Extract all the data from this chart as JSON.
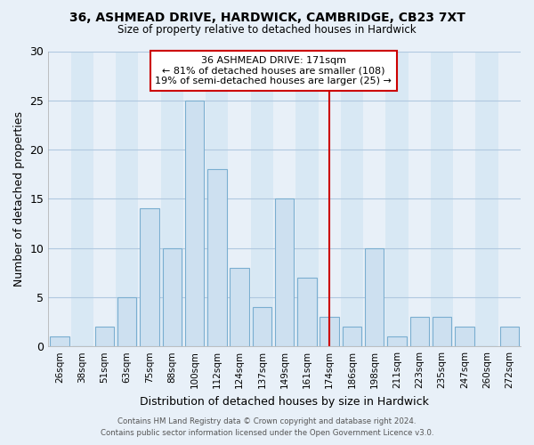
{
  "title_line1": "36, ASHMEAD DRIVE, HARDWICK, CAMBRIDGE, CB23 7XT",
  "title_line2": "Size of property relative to detached houses in Hardwick",
  "xlabel": "Distribution of detached houses by size in Hardwick",
  "ylabel": "Number of detached properties",
  "bar_labels": [
    "26sqm",
    "38sqm",
    "51sqm",
    "63sqm",
    "75sqm",
    "88sqm",
    "100sqm",
    "112sqm",
    "124sqm",
    "137sqm",
    "149sqm",
    "161sqm",
    "174sqm",
    "186sqm",
    "198sqm",
    "211sqm",
    "223sqm",
    "235sqm",
    "247sqm",
    "260sqm",
    "272sqm"
  ],
  "bar_values": [
    1,
    0,
    2,
    5,
    14,
    10,
    25,
    18,
    8,
    4,
    15,
    7,
    3,
    2,
    10,
    1,
    3,
    3,
    2,
    0,
    2
  ],
  "bar_color": "#cde0f0",
  "bar_edge_color": "#7aaed0",
  "bg_color_light": "#e8f0f8",
  "bg_color_dark": "#d8e8f4",
  "grid_line_color": "#b0c8e0",
  "background_color": "#e8f0f8",
  "vline_color": "#cc0000",
  "vline_x_index": 12,
  "annotation_title": "36 ASHMEAD DRIVE: 171sqm",
  "annotation_line1": "← 81% of detached houses are smaller (108)",
  "annotation_line2": "19% of semi-detached houses are larger (25) →",
  "annotation_box_color": "#ffffff",
  "annotation_box_edge": "#cc0000",
  "ylim": [
    0,
    30
  ],
  "yticks": [
    0,
    5,
    10,
    15,
    20,
    25,
    30
  ],
  "footer_line1": "Contains HM Land Registry data © Crown copyright and database right 2024.",
  "footer_line2": "Contains public sector information licensed under the Open Government Licence v3.0."
}
